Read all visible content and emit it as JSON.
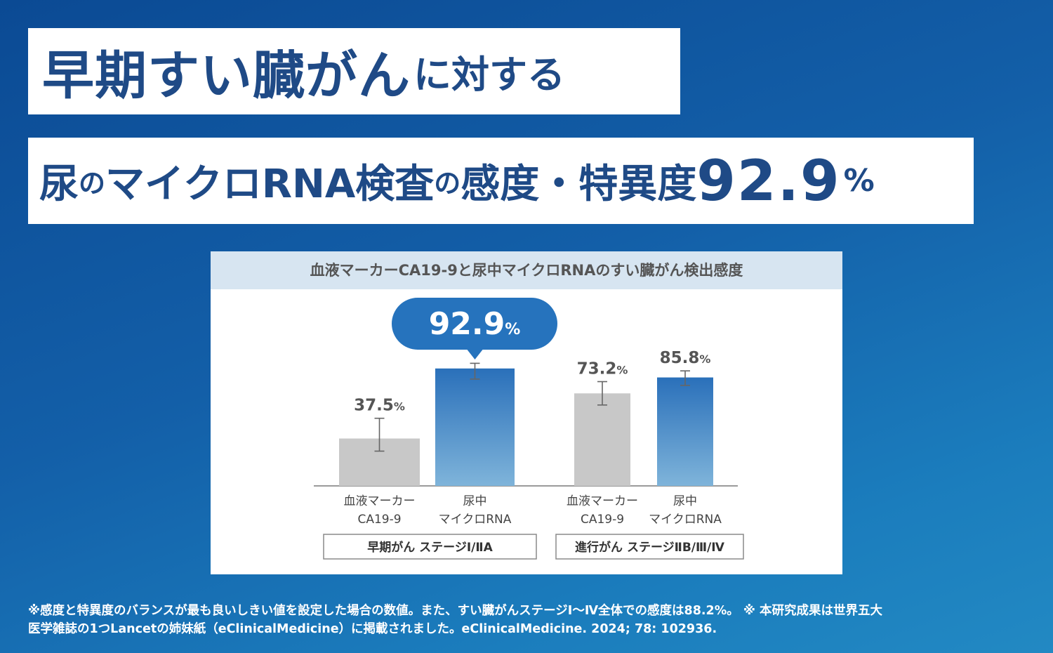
{
  "headline": {
    "line1_large": "早期すい臓がん",
    "line1_small": "に対する",
    "line2_p1": "尿",
    "line2_p2": "の",
    "line2_p3": "マイクロRNA検査",
    "line2_p4": "の",
    "line2_p5": "感度・特異度",
    "line2_value": "92.9",
    "line2_unit": "%"
  },
  "chart_data": {
    "type": "bar",
    "title": "血液マーカーCA19-9と尿中マイクロRNAのすい臓がん検出感度",
    "unit": "%",
    "ylim": [
      0,
      100
    ],
    "callout": {
      "value": "92.9",
      "unit": "%"
    },
    "bars": [
      {
        "group": 0,
        "label_line1": "血液マーカー",
        "label_line2": "CA19-9",
        "value": 37.5,
        "value_label": "37.5",
        "err_low": 27.5,
        "err_high": 53.5,
        "color": "#c8c8c8"
      },
      {
        "group": 0,
        "label_line1": "尿中",
        "label_line2": "マイクロRNA",
        "value": 92.9,
        "value_label": "",
        "err_low": 84.5,
        "err_high": 97.0,
        "color": "#2f78c0"
      },
      {
        "group": 1,
        "label_line1": "血液マーカー",
        "label_line2": "CA19-9",
        "value": 73.2,
        "value_label": "73.2",
        "err_low": 64.0,
        "err_high": 82.5,
        "color": "#c8c8c8"
      },
      {
        "group": 1,
        "label_line1": "尿中",
        "label_line2": "マイクロRNA",
        "value": 85.8,
        "value_label": "85.8",
        "err_low": 79.5,
        "err_high": 91.0,
        "color": "#2f78c0"
      }
    ],
    "groups": [
      {
        "label": "早期がん  ステージⅠ/ⅡA"
      },
      {
        "label": "進行がん  ステージⅡB/Ⅲ/Ⅳ"
      }
    ]
  },
  "colors": {
    "headline_text": "#1f4a86",
    "blue_bar_top": "#2a70ba",
    "blue_bar_bottom": "#7fb4da",
    "gray_bar": "#c8c8c8",
    "callout": "#2673bd"
  },
  "footnote": {
    "line1": "※感度と特異度のバランスが最も良いしきい値を設定した場合の数値。また、すい臓がんステージⅠ〜Ⅳ全体での感度は88.2%。 ※ 本研究成果は世界五大",
    "line2": "医学雑誌の1つLancetの姉妹紙（eClinicalMedicine）に掲載されました。eClinicalMedicine. 2024; 78: 102936."
  }
}
